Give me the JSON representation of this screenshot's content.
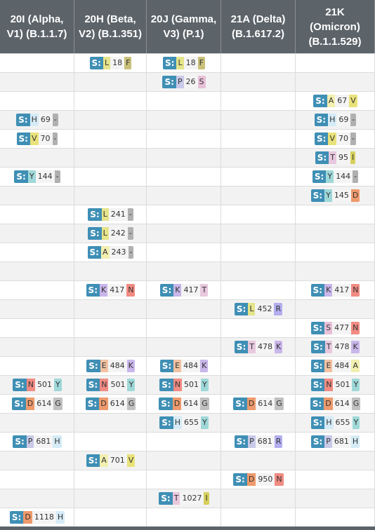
{
  "columns": [
    "20I (Alpha, V1) (B.1.1.7)",
    "20H (Beta, V2) (B.1.351)",
    "20J (Gamma, V3) (P.1)",
    "21A (Delta) (B.1.617.2)",
    "21K (Omicron) (B.1.1.529)"
  ],
  "column_lines": [
    [
      "20I (Alpha,",
      "V1) (B.1.1.7)"
    ],
    [
      "20H (Beta,",
      "V2) (B.1.351)"
    ],
    [
      "20J (Gamma,",
      "V3) (P.1)"
    ],
    [
      "21A (Delta)",
      "(B.1.617.2)"
    ],
    [
      "21K",
      "(Omicron)",
      "(B.1.1.529)"
    ]
  ],
  "gene_label": "S:",
  "colors": {
    "header_bg": "#5c6369",
    "gene_badge": "#3f8fb5",
    "row_alt": "#f2f2f2",
    "deletion": "#b0b0b0",
    "aa": {
      "L": "#e5e48a",
      "F": "#c9c07a",
      "P": "#c9c9e8",
      "S": "#e8c0d8",
      "A": "#f2efb0",
      "V": "#e9e27a",
      "H": "#d5ecf7",
      "Y": "#9fd8d8",
      "T": "#e8c8de",
      "I": "#d6cf5c",
      "D": "#ee9a6c",
      "K": "#c9b6ea",
      "N": "#f18b82",
      "R": "#b3aef0",
      "E": "#f2c2a2",
      "G": "#c0c0c0",
      "-": "#b0b0b0"
    }
  },
  "rows": [
    [
      "",
      "L18F",
      "L18F",
      "",
      ""
    ],
    [
      "",
      "",
      "P26S",
      "",
      ""
    ],
    [
      "",
      "",
      "",
      "",
      "A67V"
    ],
    [
      "H69-",
      "",
      "",
      "",
      "H69-"
    ],
    [
      "V70-",
      "",
      "",
      "",
      "V70-"
    ],
    [
      "",
      "",
      "",
      "",
      "T95I"
    ],
    [
      "Y144-",
      "",
      "",
      "",
      "Y144-"
    ],
    [
      "",
      "",
      "",
      "",
      "Y145D"
    ],
    [
      "",
      "L241-",
      "",
      "",
      ""
    ],
    [
      "",
      "L242-",
      "",
      "",
      ""
    ],
    [
      "",
      "A243-",
      "",
      "",
      ""
    ],
    [
      "",
      "",
      "",
      "",
      ""
    ],
    [
      "",
      "K417N",
      "K417T",
      "",
      "K417N"
    ],
    [
      "",
      "",
      "",
      "L452R",
      ""
    ],
    [
      "",
      "",
      "",
      "",
      "S477N"
    ],
    [
      "",
      "",
      "",
      "T478K",
      "T478K"
    ],
    [
      "",
      "E484K",
      "E484K",
      "",
      "E484A"
    ],
    [
      "N501Y",
      "N501Y",
      "N501Y",
      "",
      "N501Y"
    ],
    [
      "D614G",
      "D614G",
      "D614G",
      "D614G",
      "D614G"
    ],
    [
      "",
      "",
      "H655Y",
      "",
      "H655Y"
    ],
    [
      "P681H",
      "",
      "",
      "P681R",
      "P681H"
    ],
    [
      "",
      "A701V",
      "",
      "",
      ""
    ],
    [
      "",
      "",
      "",
      "D950N",
      ""
    ],
    [
      "",
      "",
      "T1027I",
      "",
      ""
    ],
    [
      "D1118H",
      "",
      "",
      "",
      ""
    ]
  ]
}
